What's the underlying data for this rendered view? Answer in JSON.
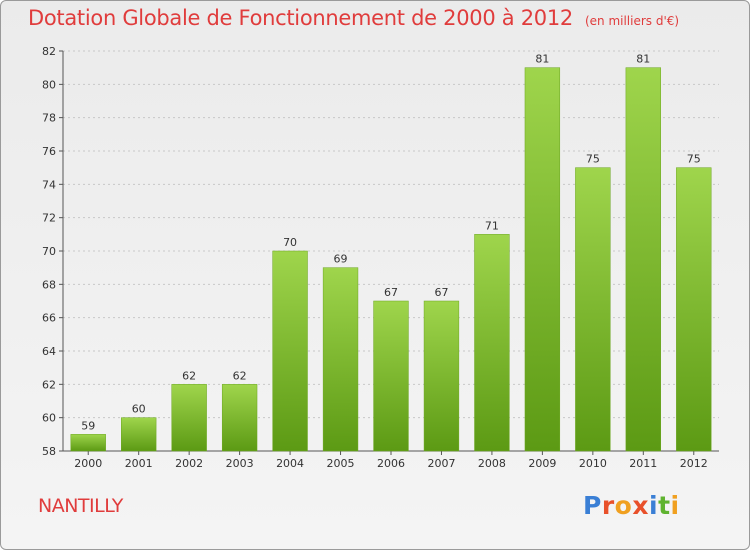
{
  "header": {
    "title": "Dotation Globale de Fonctionnement de 2000 à 2012",
    "subtitle": "(en milliers d'€)"
  },
  "footer": {
    "place": "NANTILLY",
    "logo_text": "Proxiti",
    "logo_colors": [
      "#3a7fd5",
      "#e8502a",
      "#f0a020",
      "#e8502a",
      "#3a7fd5",
      "#5fb32f",
      "#f0a020"
    ]
  },
  "chart_data": {
    "type": "bar",
    "title": "Dotation Globale de Fonctionnement de 2000 à 2012",
    "subtitle": "(en milliers d'€)",
    "xlabel": "",
    "ylabel": "",
    "categories": [
      "2000",
      "2001",
      "2002",
      "2003",
      "2004",
      "2005",
      "2006",
      "2007",
      "2008",
      "2009",
      "2010",
      "2011",
      "2012"
    ],
    "values": [
      59,
      60,
      62,
      62,
      70,
      69,
      67,
      67,
      71,
      81,
      75,
      81,
      75
    ],
    "ylim": [
      58,
      82
    ],
    "yticks": [
      58,
      60,
      62,
      64,
      66,
      68,
      70,
      72,
      74,
      76,
      78,
      80,
      82
    ],
    "grid": true,
    "bar_color": "#7ab829",
    "legend": "none"
  }
}
